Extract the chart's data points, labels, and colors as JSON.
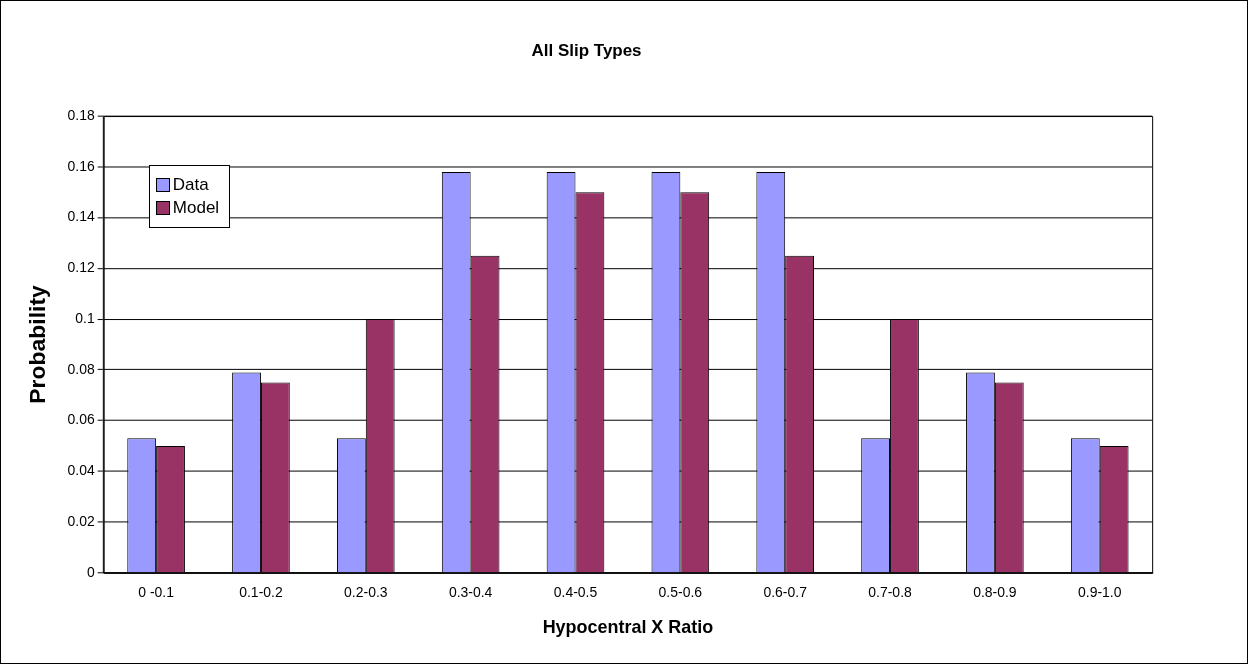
{
  "chart_data": {
    "type": "bar",
    "title": "All Slip Types",
    "xlabel": "Hypocentral X Ratio",
    "ylabel": "Probability",
    "categories": [
      "0 -0.1",
      "0.1-0.2",
      "0.2-0.3",
      "0.3-0.4",
      "0.4-0.5",
      "0.5-0.6",
      "0.6-0.7",
      "0.7-0.8",
      "0.8-0.9",
      "0.9-1.0"
    ],
    "series": [
      {
        "name": "Data",
        "color": "#9999ff",
        "values": [
          0.053,
          0.079,
          0.053,
          0.158,
          0.158,
          0.158,
          0.158,
          0.053,
          0.079,
          0.053
        ]
      },
      {
        "name": "Model",
        "color": "#993366",
        "values": [
          0.05,
          0.075,
          0.1,
          0.125,
          0.15,
          0.15,
          0.125,
          0.1,
          0.075,
          0.05
        ]
      }
    ],
    "ylim": [
      0,
      0.18
    ],
    "yticks": [
      0,
      0.02,
      0.04,
      0.06,
      0.08,
      0.1,
      0.12,
      0.14,
      0.16,
      0.18
    ],
    "grid": "y",
    "legend": "top left"
  }
}
